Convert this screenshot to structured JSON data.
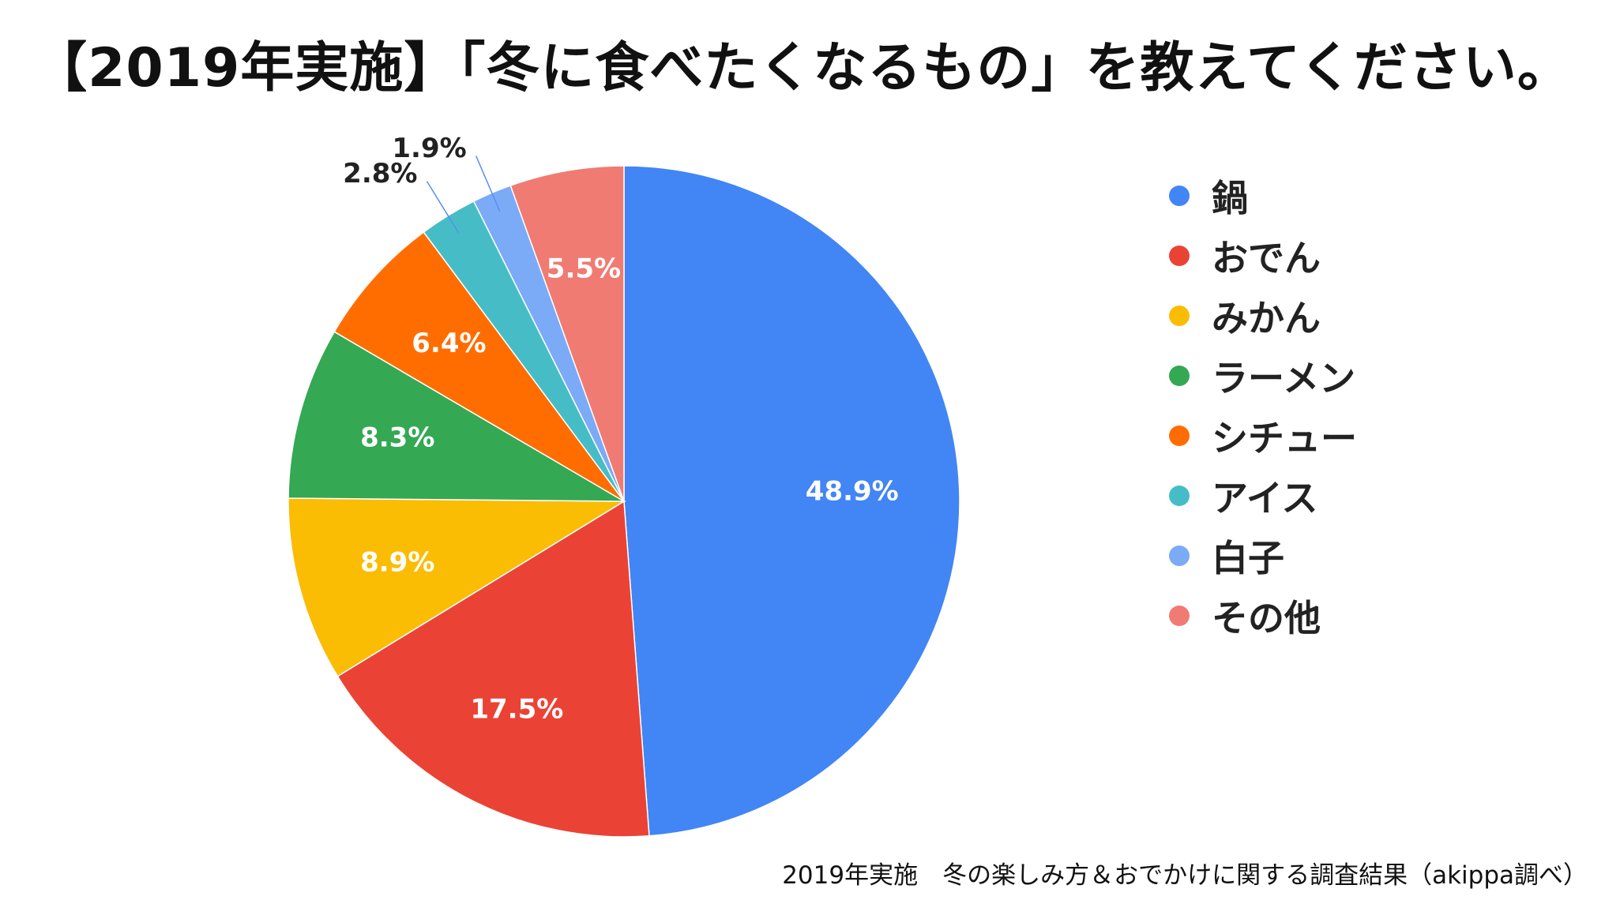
{
  "chart_data": {
    "type": "pie",
    "title": "【2019年実施】「冬に食べたくなるもの」を教えてください。",
    "categories": [
      "鍋",
      "おでん",
      "みかん",
      "ラーメン",
      "シチュー",
      "アイス",
      "白子",
      "その他"
    ],
    "values": [
      48.9,
      17.5,
      8.9,
      8.3,
      6.4,
      2.8,
      1.9,
      5.5
    ],
    "value_labels": [
      "48.9%",
      "17.5%",
      "8.9%",
      "8.3%",
      "6.4%",
      "2.8%",
      "1.9%",
      "5.5%"
    ],
    "colors": [
      "#4285f4",
      "#ea4335",
      "#fbbc04",
      "#34a853",
      "#ff6d01",
      "#46bdc6",
      "#7baaf7",
      "#f07b72"
    ],
    "start_angle": "12 o'clock",
    "direction": "clockwise",
    "legend_position": "right",
    "source": "2019年実施　冬の楽しみ方＆おでかけに関する調査結果（akippa調べ）"
  }
}
